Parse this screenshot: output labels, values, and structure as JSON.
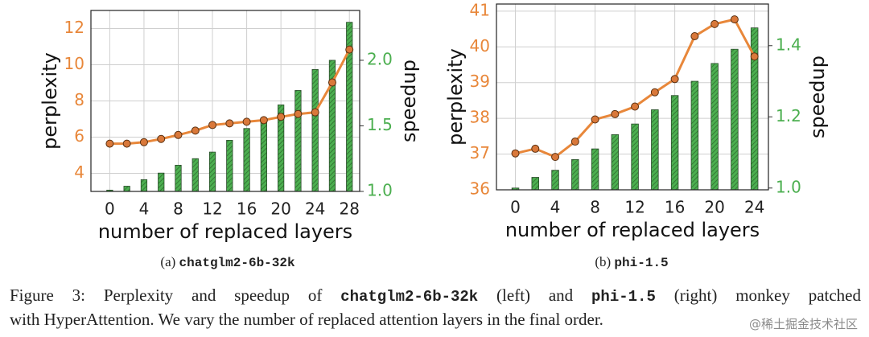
{
  "chart_data": [
    {
      "type": "combo",
      "ylabel": "perplexity",
      "y2label": "speedup",
      "xlabel": "number of replaced layers",
      "subcaption_label": "(a)",
      "subcaption_model": "chatglm2-6b-32k",
      "x": [
        0,
        2,
        4,
        6,
        8,
        10,
        12,
        14,
        16,
        18,
        20,
        22,
        24,
        26,
        28
      ],
      "series": [
        {
          "type": "line",
          "color": "#e8873a",
          "values": [
            5.64,
            5.64,
            5.72,
            5.9,
            6.12,
            6.36,
            6.67,
            6.76,
            6.85,
            6.94,
            7.12,
            7.28,
            7.37,
            9.02,
            10.84
          ]
        },
        {
          "type": "bar",
          "axis": "y2",
          "color": "#4caf50",
          "values": [
            1.01,
            1.04,
            1.09,
            1.14,
            1.2,
            1.25,
            1.3,
            1.39,
            1.48,
            1.56,
            1.66,
            1.77,
            1.93,
            2.0,
            2.29
          ]
        }
      ],
      "xlim": [
        -2.2,
        29.2
      ],
      "xticks": [
        0,
        4,
        8,
        12,
        16,
        20,
        24,
        28
      ],
      "ylim": [
        3,
        13
      ],
      "yticks": [
        4,
        6,
        8,
        10,
        12
      ],
      "y2lim": [
        1.0,
        2.38
      ],
      "y2ticks": [
        {
          "value": 1,
          "label": "1.0"
        },
        1.5,
        {
          "value": 2,
          "label": "2.0"
        }
      ],
      "grid": true
    },
    {
      "type": "combo",
      "ylabel": "perplexity",
      "y2label": "speedup",
      "xlabel": "number of replaced layers",
      "subcaption_label": "(b)",
      "subcaption_model": "phi-1.5",
      "x": [
        0,
        2,
        4,
        6,
        8,
        10,
        12,
        14,
        16,
        18,
        20,
        22,
        24
      ],
      "series": [
        {
          "type": "line",
          "color": "#e8873a",
          "values": [
            37.02,
            37.15,
            36.92,
            37.35,
            37.97,
            38.12,
            38.33,
            38.73,
            39.1,
            40.3,
            40.64,
            40.77,
            39.73
          ]
        },
        {
          "type": "bar",
          "axis": "y2",
          "color": "#4caf50",
          "values": [
            1.0,
            1.03,
            1.05,
            1.08,
            1.11,
            1.15,
            1.18,
            1.22,
            1.26,
            1.3,
            1.35,
            1.39,
            1.45
          ]
        }
      ],
      "xlim": [
        -1.9,
        25.4
      ],
      "xticks": [
        0,
        4,
        8,
        12,
        16,
        20,
        24
      ],
      "ylim": [
        36,
        41.2
      ],
      "yticks": [
        36,
        37,
        38,
        39,
        40,
        41
      ],
      "y2lim": [
        0.995,
        1.517
      ],
      "y2ticks": [
        {
          "value": 1,
          "label": "1.0"
        },
        1.2,
        1.4
      ],
      "grid": true
    }
  ],
  "caption": [
    "Figure 3: Perplexity and speedup of ",
    "chatglm2-6b-32k",
    " (left) and ",
    "phi-1.5",
    " (right) monkey patched",
    "with HyperAttention. We vary the number of replaced attention layers in the final order."
  ],
  "watermark": "@稀土掘金技术社区"
}
